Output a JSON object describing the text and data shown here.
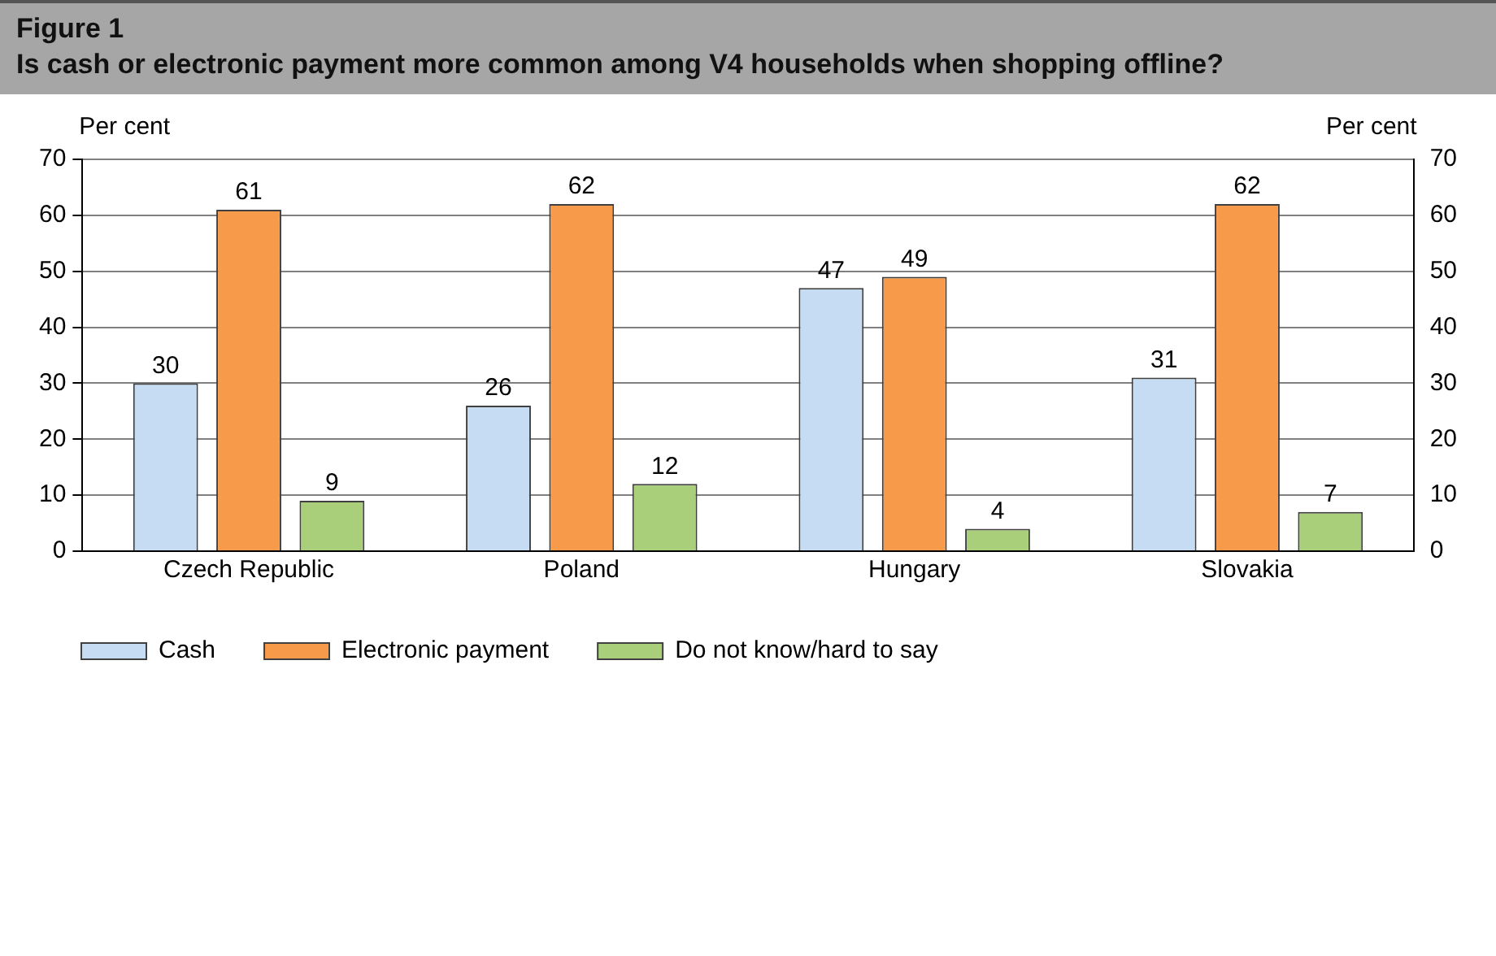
{
  "chart_data": {
    "type": "bar",
    "title": "Figure 1",
    "subtitle": "Is cash or electronic payment more common among V4 households when shopping offline?",
    "ylabel": "Per cent",
    "y2label": "Per cent",
    "categories": [
      "Czech Republic",
      "Poland",
      "Hungary",
      "Slovakia"
    ],
    "series": [
      {
        "name": "Cash",
        "color": "#c5dcf2",
        "values": [
          30,
          26,
          47,
          31
        ]
      },
      {
        "name": "Electronic payment",
        "color": "#f79a4a",
        "values": [
          61,
          62,
          49,
          62
        ]
      },
      {
        "name": "Do not know/hard to say",
        "color": "#a9cf7a",
        "values": [
          9,
          12,
          4,
          7
        ]
      }
    ],
    "ylim": [
      0,
      70
    ],
    "yticks": [
      0,
      10,
      20,
      30,
      40,
      50,
      60,
      70
    ],
    "y2lim": [
      0,
      70
    ],
    "y2ticks": [
      0,
      10,
      20,
      30,
      40,
      50,
      60,
      70
    ],
    "grid": "y",
    "legend": "bottom",
    "data_labels": true
  }
}
